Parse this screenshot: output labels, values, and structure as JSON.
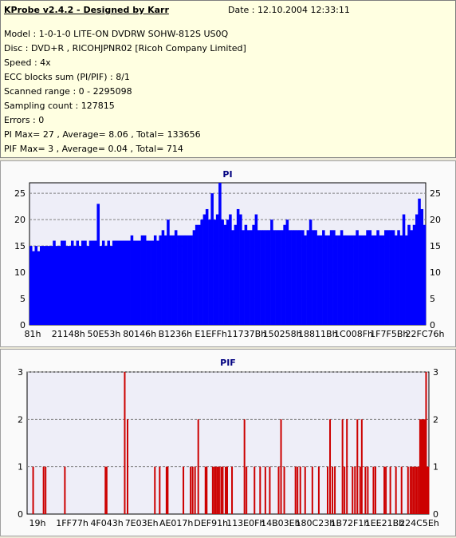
{
  "header": {
    "title": "KProbe v2.4.2 - Designed by Karr",
    "date": "Date : 12.10.2004 12:33:11",
    "lines": [
      "Model : 1-0-1-0 LITE-ON DVDRW SOHW-812S  US0Q",
      "Disc : DVD+R , RICOHJPNR02 [Ricoh Company Limited]",
      "Speed : 4x",
      "ECC blocks sum (PI/PIF) : 8/1",
      "Scanned range : 0 - 2295098",
      "Sampling count : 127815",
      "Errors : 0",
      "PI Max= 27 , Average= 8.06 , Total= 133656",
      "PIF Max= 3 , Average= 0.04 , Total= 714"
    ]
  },
  "colors": {
    "pi_series": "#0000ff",
    "pif_series": "#cc0000",
    "plot_bg": "#eeeef8",
    "title_color": "#000080",
    "grid": "#808080"
  },
  "chart_data": [
    {
      "type": "bar",
      "title": "PI",
      "ylim": [
        0,
        27
      ],
      "yticks": [
        0,
        5,
        10,
        15,
        20,
        25
      ],
      "grid": true,
      "right_axis": true,
      "xtick_labels": [
        "81h",
        "21148h",
        "50E53h",
        "80146h",
        "B1236h",
        "E1EFFh",
        "11737Bh",
        "150258h",
        "18811Bh",
        "1C008Fh",
        "1F7F5Bh",
        "22FC76h"
      ],
      "max": 27,
      "average": 8.06,
      "series": [
        {
          "values": [
            15,
            14,
            15,
            14,
            15,
            15,
            15,
            15,
            15,
            16,
            15,
            15,
            16,
            16,
            15,
            15,
            16,
            15,
            16,
            15,
            16,
            16,
            15,
            16,
            16,
            16,
            23,
            15,
            16,
            15,
            16,
            15,
            16,
            16,
            16,
            16,
            16,
            16,
            16,
            17,
            16,
            16,
            16,
            17,
            17,
            16,
            16,
            16,
            17,
            16,
            17,
            18,
            17,
            20,
            17,
            17,
            18,
            17,
            17,
            17,
            17,
            17,
            17,
            18,
            19,
            19,
            20,
            21,
            22,
            20,
            25,
            20,
            21,
            27,
            20,
            19,
            20,
            21,
            18,
            19,
            22,
            21,
            18,
            19,
            18,
            18,
            19,
            21,
            18,
            18,
            18,
            18,
            18,
            20,
            18,
            18,
            18,
            18,
            19,
            20,
            18,
            18,
            18,
            18,
            18,
            18,
            17,
            18,
            20,
            18,
            18,
            17,
            17,
            18,
            17,
            17,
            18,
            18,
            17,
            17,
            18,
            17,
            17,
            17,
            17,
            17,
            18,
            17,
            17,
            17,
            18,
            18,
            17,
            17,
            18,
            17,
            17,
            18,
            18,
            18,
            18,
            17,
            18,
            17,
            21,
            17,
            19,
            18,
            19,
            21,
            24,
            22,
            19
          ]
        }
      ]
    },
    {
      "type": "bar",
      "title": "PIF",
      "ylim": [
        0,
        3
      ],
      "yticks": [
        0,
        1,
        2,
        3
      ],
      "grid": true,
      "right_axis": true,
      "xtick_labels": [
        "19h",
        "1FF77h",
        "4F043h",
        "7E03Eh",
        "AE017h",
        "DEF91h",
        "113E0Fh",
        "14B03Eh",
        "180C23h",
        "1B72F1h",
        "1EE21Bh",
        "224C5Eh"
      ],
      "max": 3,
      "average": 0.04,
      "series": [
        {
          "points": [
            [
              0.015,
              1
            ],
            [
              0.041,
              1
            ],
            [
              0.046,
              1
            ],
            [
              0.094,
              1
            ],
            [
              0.195,
              1
            ],
            [
              0.198,
              1
            ],
            [
              0.243,
              3
            ],
            [
              0.25,
              2
            ],
            [
              0.318,
              1
            ],
            [
              0.33,
              1
            ],
            [
              0.347,
              1
            ],
            [
              0.35,
              1
            ],
            [
              0.389,
              1
            ],
            [
              0.407,
              1
            ],
            [
              0.412,
              1
            ],
            [
              0.418,
              1
            ],
            [
              0.426,
              2
            ],
            [
              0.444,
              1
            ],
            [
              0.447,
              1
            ],
            [
              0.462,
              1
            ],
            [
              0.466,
              1
            ],
            [
              0.47,
              1
            ],
            [
              0.474,
              1
            ],
            [
              0.478,
              1
            ],
            [
              0.483,
              1
            ],
            [
              0.487,
              1
            ],
            [
              0.494,
              1
            ],
            [
              0.498,
              1
            ],
            [
              0.51,
              1
            ],
            [
              0.541,
              2
            ],
            [
              0.546,
              1
            ],
            [
              0.566,
              1
            ],
            [
              0.58,
              1
            ],
            [
              0.593,
              1
            ],
            [
              0.604,
              1
            ],
            [
              0.626,
              1
            ],
            [
              0.632,
              2
            ],
            [
              0.64,
              1
            ],
            [
              0.668,
              1
            ],
            [
              0.673,
              1
            ],
            [
              0.68,
              1
            ],
            [
              0.692,
              1
            ],
            [
              0.71,
              1
            ],
            [
              0.726,
              1
            ],
            [
              0.748,
              1
            ],
            [
              0.754,
              2
            ],
            [
              0.76,
              1
            ],
            [
              0.766,
              1
            ],
            [
              0.785,
              2
            ],
            [
              0.79,
              1
            ],
            [
              0.796,
              2
            ],
            [
              0.81,
              1
            ],
            [
              0.816,
              1
            ],
            [
              0.822,
              2
            ],
            [
              0.829,
              1
            ],
            [
              0.833,
              2
            ],
            [
              0.842,
              1
            ],
            [
              0.848,
              1
            ],
            [
              0.862,
              1
            ],
            [
              0.867,
              1
            ],
            [
              0.889,
              1
            ],
            [
              0.893,
              1
            ],
            [
              0.904,
              1
            ],
            [
              0.918,
              1
            ],
            [
              0.932,
              1
            ],
            [
              0.948,
              1
            ],
            [
              0.954,
              1
            ],
            [
              0.958,
              1
            ],
            [
              0.962,
              1
            ],
            [
              0.966,
              1
            ],
            [
              0.97,
              1
            ],
            [
              0.974,
              1
            ],
            [
              0.978,
              2
            ],
            [
              0.981,
              2
            ],
            [
              0.984,
              2
            ],
            [
              0.987,
              2
            ],
            [
              0.99,
              2
            ],
            [
              0.993,
              3
            ],
            [
              0.996,
              1
            ],
            [
              0.999,
              1
            ]
          ]
        }
      ]
    }
  ]
}
